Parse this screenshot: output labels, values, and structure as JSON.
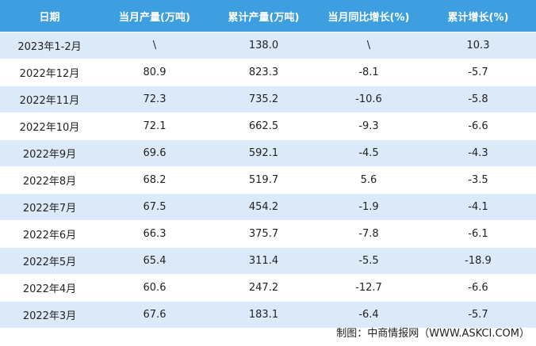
{
  "table": {
    "header": [
      "日期",
      "当月产量(万吨)",
      "累计产量(万吨)",
      "当月同比增长(%)",
      "累计增长(%)"
    ],
    "rows": [
      [
        "2023年1-2月",
        "\\",
        "138.0",
        "\\",
        "10.3"
      ],
      [
        "2022年12月",
        "80.9",
        "823.3",
        "-8.1",
        "-5.7"
      ],
      [
        "2022年11月",
        "72.3",
        "735.2",
        "-10.6",
        "-5.8"
      ],
      [
        "2022年10月",
        "72.1",
        "662.5",
        "-9.3",
        "-6.6"
      ],
      [
        "2022年9月",
        "69.6",
        "592.1",
        "-4.5",
        "-4.3"
      ],
      [
        "2022年8月",
        "68.2",
        "519.7",
        "5.6",
        "-3.5"
      ],
      [
        "2022年7月",
        "67.5",
        "454.2",
        "-1.9",
        "-4.1"
      ],
      [
        "2022年6月",
        "66.3",
        "375.7",
        "-7.8",
        "-6.1"
      ],
      [
        "2022年5月",
        "65.4",
        "311.4",
        "-5.5",
        "-18.9"
      ],
      [
        "2022年4月",
        "60.6",
        "247.2",
        "-12.7",
        "-6.6"
      ],
      [
        "2022年3月",
        "67.6",
        "183.1",
        "-6.4",
        "-5.7"
      ]
    ]
  },
  "footer": "制图：中商情报网（WWW.ASKCI.COM）"
}
